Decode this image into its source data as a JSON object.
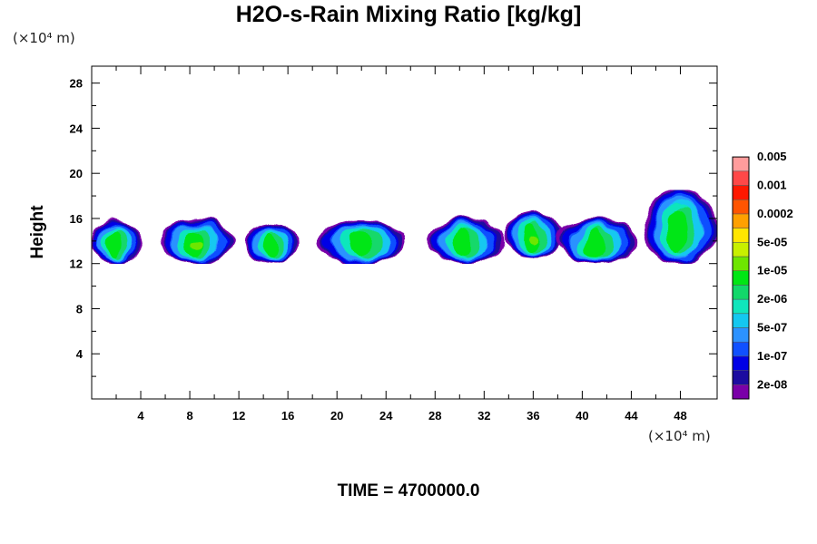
{
  "chart_data": {
    "type": "heatmap",
    "title": "H2O-s-Rain Mixing Ratio [kg/kg]",
    "ylabel": "Height",
    "x_unit_label": "(×10⁴ m)",
    "y_unit_label": "(×10⁴ m)",
    "time_label": "TIME = 4700000.0",
    "xlim": [
      0,
      51
    ],
    "ylim": [
      0,
      29.5
    ],
    "x_ticks": [
      4,
      8,
      12,
      16,
      20,
      24,
      28,
      32,
      36,
      40,
      44,
      48
    ],
    "y_ticks": [
      4,
      8,
      12,
      16,
      20,
      24,
      28
    ],
    "colorbar": {
      "colors": [
        "#7a00a8",
        "#1c0ca0",
        "#0000e6",
        "#1050ff",
        "#2c92ff",
        "#14c8f0",
        "#10e6bc",
        "#12d86a",
        "#00e614",
        "#6ee600",
        "#c8f000",
        "#ffe600",
        "#ffa000",
        "#ff5500",
        "#ff1800",
        "#ff4848",
        "#ff9c9c"
      ],
      "labels": [
        "2e-08",
        "1e-07",
        "5e-07",
        "2e-06",
        "1e-05",
        "5e-05",
        "0.0002",
        "0.001",
        "0.005"
      ],
      "label_positions": [
        1,
        3,
        5,
        7,
        9,
        11,
        13,
        15,
        17
      ]
    },
    "cloud_layer": [
      {
        "x": [
          0,
          4
        ],
        "y": [
          12,
          16
        ],
        "peak": "green"
      },
      {
        "x": [
          5.5,
          11.5
        ],
        "y": [
          12,
          16
        ],
        "peak": "yellow-green"
      },
      {
        "x": [
          12.5,
          17
        ],
        "y": [
          12,
          15.6
        ],
        "peak": "green"
      },
      {
        "x": [
          18.5,
          25.5
        ],
        "y": [
          12,
          16
        ],
        "peak": "green"
      },
      {
        "x": [
          27.5,
          33.5
        ],
        "y": [
          12,
          16
        ],
        "peak": "green"
      },
      {
        "x": [
          33.5,
          38.5
        ],
        "y": [
          12.5,
          16.5
        ],
        "peak": "yellow-green"
      },
      {
        "x": [
          38,
          44.5
        ],
        "y": [
          12,
          16
        ],
        "peak": "green"
      },
      {
        "x": [
          45,
          51
        ],
        "y": [
          12,
          18.5
        ],
        "peak": "green"
      }
    ]
  }
}
